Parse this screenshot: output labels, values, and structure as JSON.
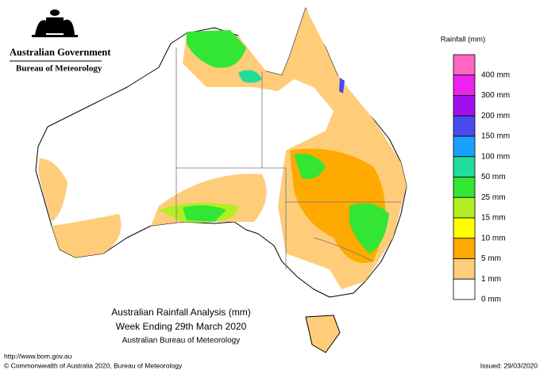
{
  "header": {
    "government": "Australian Government",
    "agency": "Bureau of Meteorology"
  },
  "title": {
    "line1": "Australian Rainfall Analysis (mm)",
    "line2": "Week Ending 29th March 2020",
    "line3": "Australian Bureau of Meteorology"
  },
  "legend": {
    "title": "Rainfall (mm)",
    "items": [
      {
        "label": "400 mm",
        "color": "#ff66c4"
      },
      {
        "label": "300 mm",
        "color": "#ee22ee"
      },
      {
        "label": "200 mm",
        "color": "#a010ee"
      },
      {
        "label": "150 mm",
        "color": "#4a4aee"
      },
      {
        "label": "100 mm",
        "color": "#1aa0ff"
      },
      {
        "label": "50 mm",
        "color": "#22dd99"
      },
      {
        "label": "25 mm",
        "color": "#33e633"
      },
      {
        "label": "15 mm",
        "color": "#b2ee22"
      },
      {
        "label": "10 mm",
        "color": "#ffff00"
      },
      {
        "label": "5 mm",
        "color": "#ffaa00"
      },
      {
        "label": "1 mm",
        "color": "#ffcc7a"
      },
      {
        "label": "0 mm",
        "color": "#ffffff"
      }
    ]
  },
  "footer": {
    "url": "http://www.bom.gov.au",
    "copyright": "© Commonwealth of Australia 2020, Bureau of Meteorology",
    "issued": "Issued: 29/03/2020"
  }
}
